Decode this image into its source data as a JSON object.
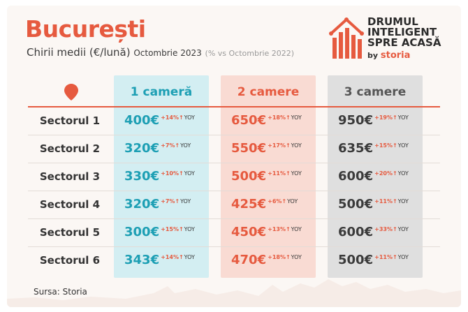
{
  "header": {
    "title": "București",
    "subtitle_main": "Chirii medii (€/lună)",
    "subtitle_month": "Octombrie 2023",
    "subtitle_compare": "(% vs Octombrie 2022)"
  },
  "logo": {
    "line1": "DRUMUL",
    "line2": "INTELIGENT",
    "line3": "SPRE ACASĂ",
    "by": "by",
    "brand": "storia"
  },
  "columns": [
    "1 cameră",
    "2 camere",
    "3 camere"
  ],
  "yoy_label": "YOY",
  "rows": [
    {
      "label": "Sectorul 1",
      "cells": [
        {
          "price": "400€",
          "change": "+14%↑"
        },
        {
          "price": "650€",
          "change": "+18%↑"
        },
        {
          "price": "950€",
          "change": "+19%↑"
        }
      ]
    },
    {
      "label": "Sectorul 2",
      "cells": [
        {
          "price": "320€",
          "change": "+7%↑"
        },
        {
          "price": "550€",
          "change": "+17%↑"
        },
        {
          "price": "635€",
          "change": "+15%↑"
        }
      ]
    },
    {
      "label": "Sectorul 3",
      "cells": [
        {
          "price": "330€",
          "change": "+10%↑"
        },
        {
          "price": "500€",
          "change": "+11%↑"
        },
        {
          "price": "600€",
          "change": "+20%↑"
        }
      ]
    },
    {
      "label": "Sectorul 4",
      "cells": [
        {
          "price": "320€",
          "change": "+7%↑"
        },
        {
          "price": "425€",
          "change": "+6%↑"
        },
        {
          "price": "500€",
          "change": "+11%↑"
        }
      ]
    },
    {
      "label": "Sectorul 5",
      "cells": [
        {
          "price": "300€",
          "change": "+15%↑"
        },
        {
          "price": "450€",
          "change": "+13%↑"
        },
        {
          "price": "600€",
          "change": "+33%↑"
        }
      ]
    },
    {
      "label": "Sectorul 6",
      "cells": [
        {
          "price": "343€",
          "change": "+14%↑"
        },
        {
          "price": "470€",
          "change": "+18%↑"
        },
        {
          "price": "500€",
          "change": "+11%↑"
        }
      ]
    }
  ],
  "source": "Sursa: Storia",
  "colors": {
    "accent": "#e65a3f",
    "col1": "#1d9fb4",
    "col1_bg": "#d3eef2",
    "col2_bg": "#f9dbd3",
    "col3_bg": "#dfdfdf"
  }
}
